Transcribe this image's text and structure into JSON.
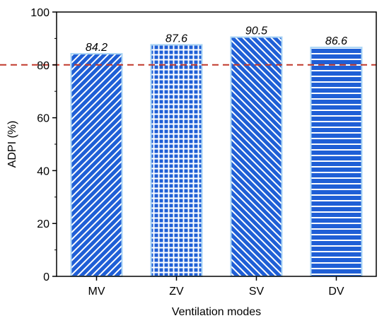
{
  "chart_data": {
    "type": "bar",
    "categories": [
      "MV",
      "ZV",
      "SV",
      "DV"
    ],
    "values": [
      84.2,
      87.6,
      90.5,
      86.6
    ],
    "data_labels": [
      "84.2",
      "87.6",
      "90.5",
      "86.6"
    ],
    "patterns": [
      "diagonal-up",
      "grid",
      "diagonal-down",
      "horizontal"
    ],
    "title": "",
    "xlabel": "Ventilation modes",
    "ylabel": "ADPI (%)",
    "ylim": [
      0,
      100
    ],
    "yticks": [
      0,
      20,
      40,
      60,
      80,
      100
    ],
    "ytick_labels": [
      "0",
      "20",
      "40",
      "60",
      "80",
      "100"
    ],
    "reference_line": 80,
    "grid": false,
    "bar_color": "#1f5fd6",
    "bar_edge_color": "#a9d4f5",
    "reference_line_color": "#c0392b"
  }
}
